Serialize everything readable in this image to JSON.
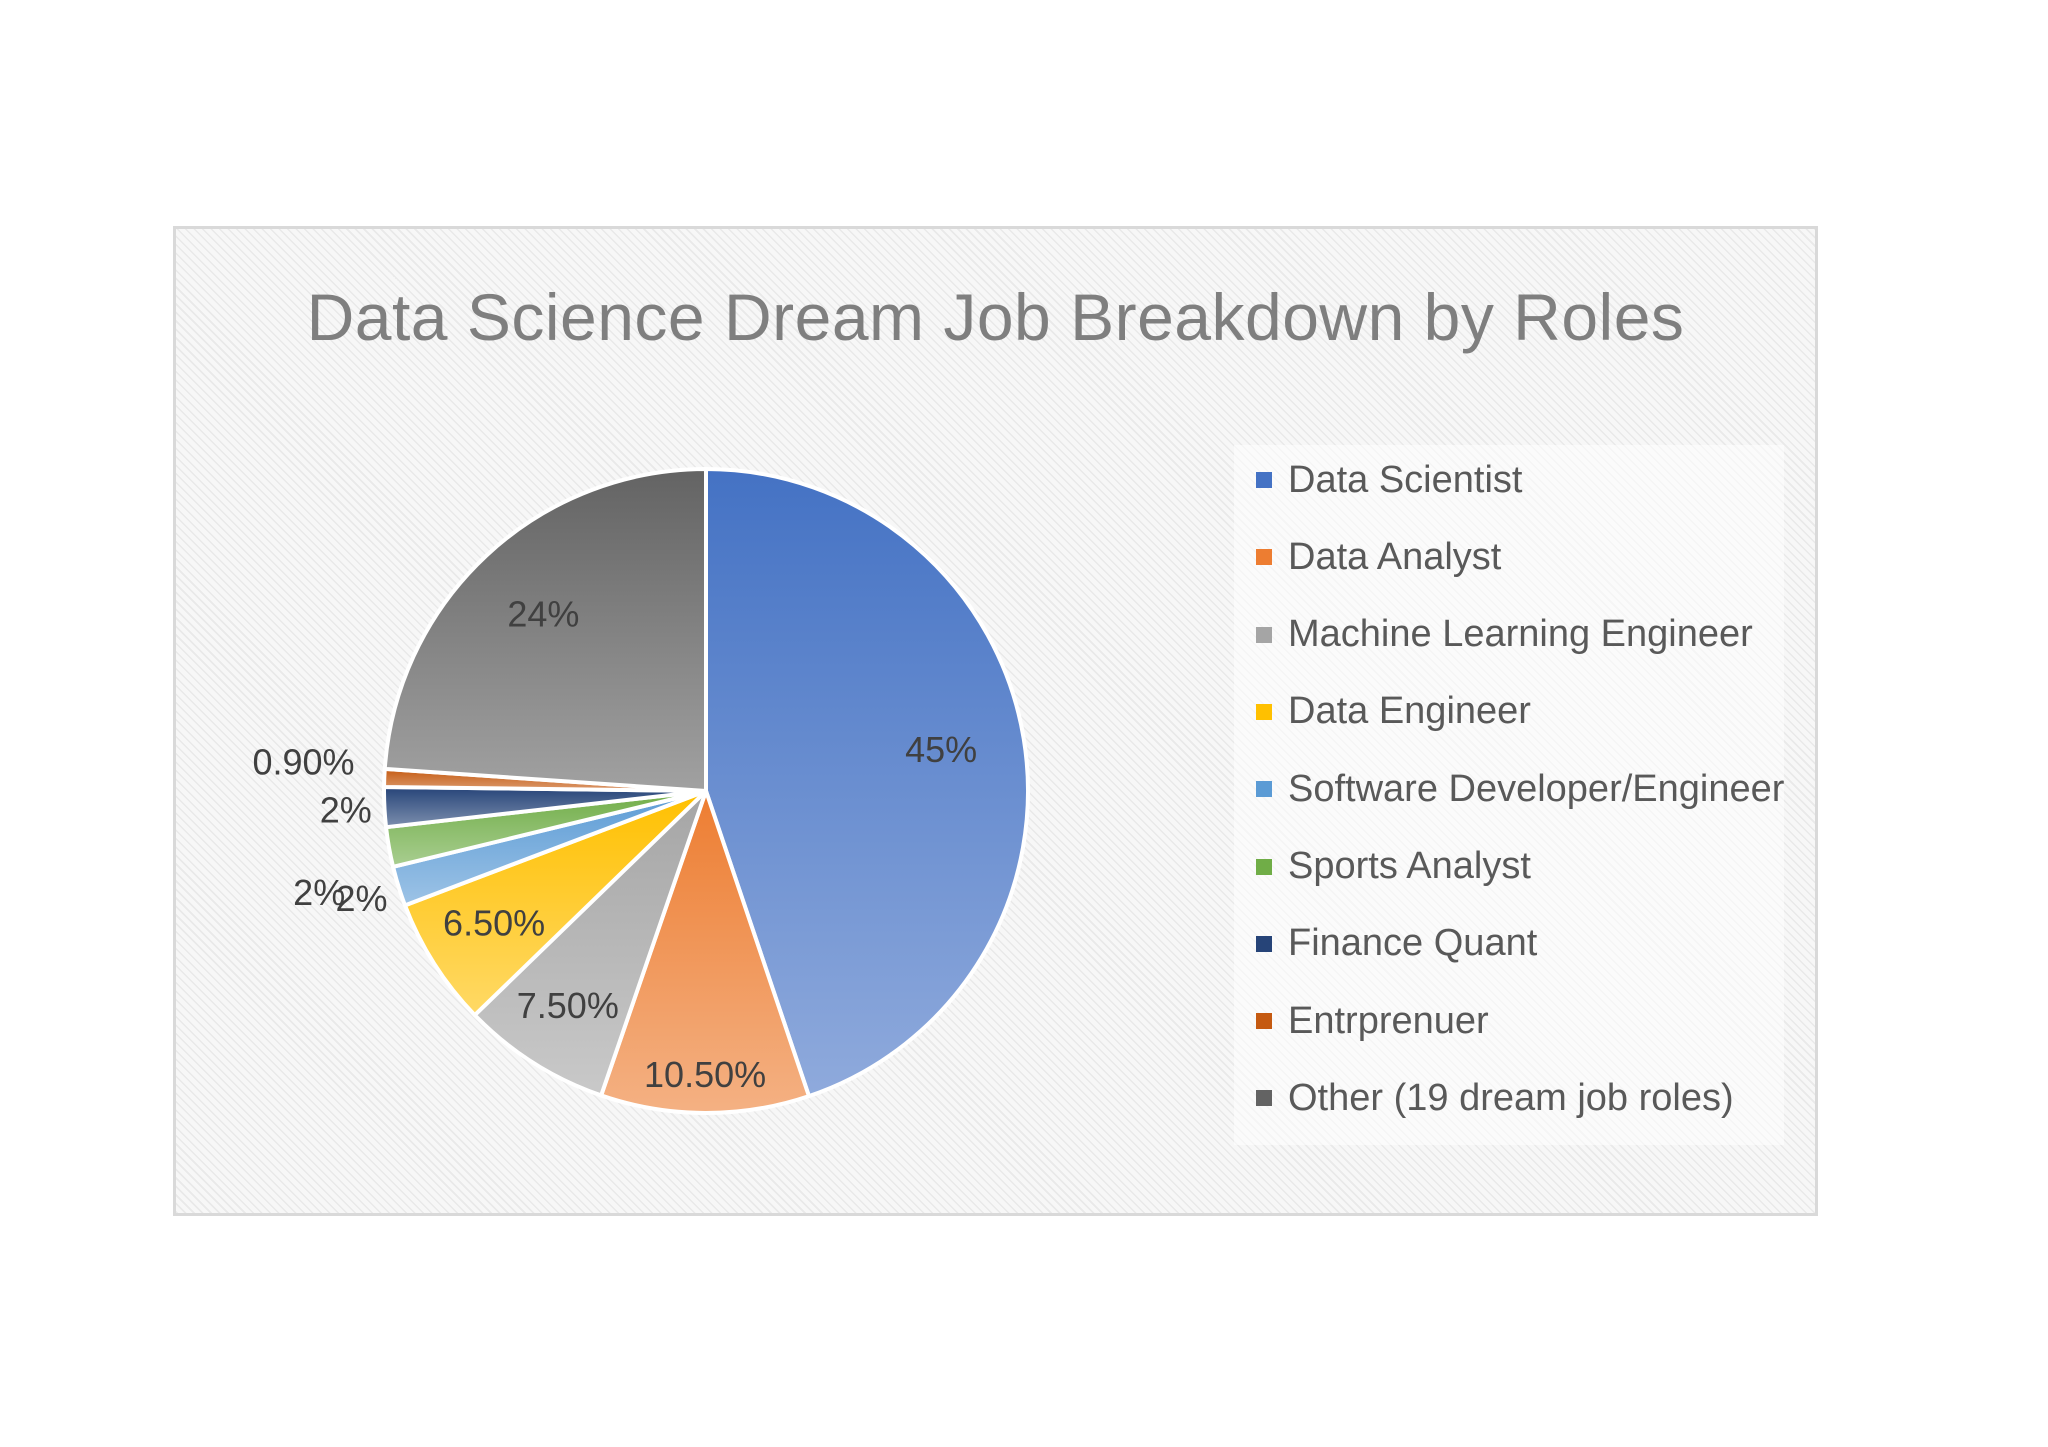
{
  "chart_data": {
    "type": "pie",
    "title": "Data Science Dream Job Breakdown by Roles",
    "legend_position": "right",
    "slices": [
      {
        "name": "Data Scientist",
        "value": 45,
        "label": "45%",
        "color": "#4472c4"
      },
      {
        "name": "Data Analyst",
        "value": 10.5,
        "label": "10.50%",
        "color": "#ed7d31"
      },
      {
        "name": "Machine Learning Engineer",
        "value": 7.5,
        "label": "7.50%",
        "color": "#a5a5a5"
      },
      {
        "name": "Data Engineer",
        "value": 6.5,
        "label": "6.50%",
        "color": "#ffc000"
      },
      {
        "name": "Software Developer/Engineer",
        "value": 2,
        "label": "2%",
        "color": "#5b9bd5"
      },
      {
        "name": "Sports Analyst",
        "value": 2,
        "label": "2%",
        "color": "#70ad47"
      },
      {
        "name": "Finance Quant",
        "value": 2,
        "label": "2%",
        "color": "#264478"
      },
      {
        "name": "Entrprenuer",
        "value": 0.9,
        "label": "0.90%",
        "color": "#c55a11"
      },
      {
        "name": "Other (19 dream job roles)",
        "value": 24,
        "label": "24%",
        "color": "#636363"
      }
    ]
  }
}
